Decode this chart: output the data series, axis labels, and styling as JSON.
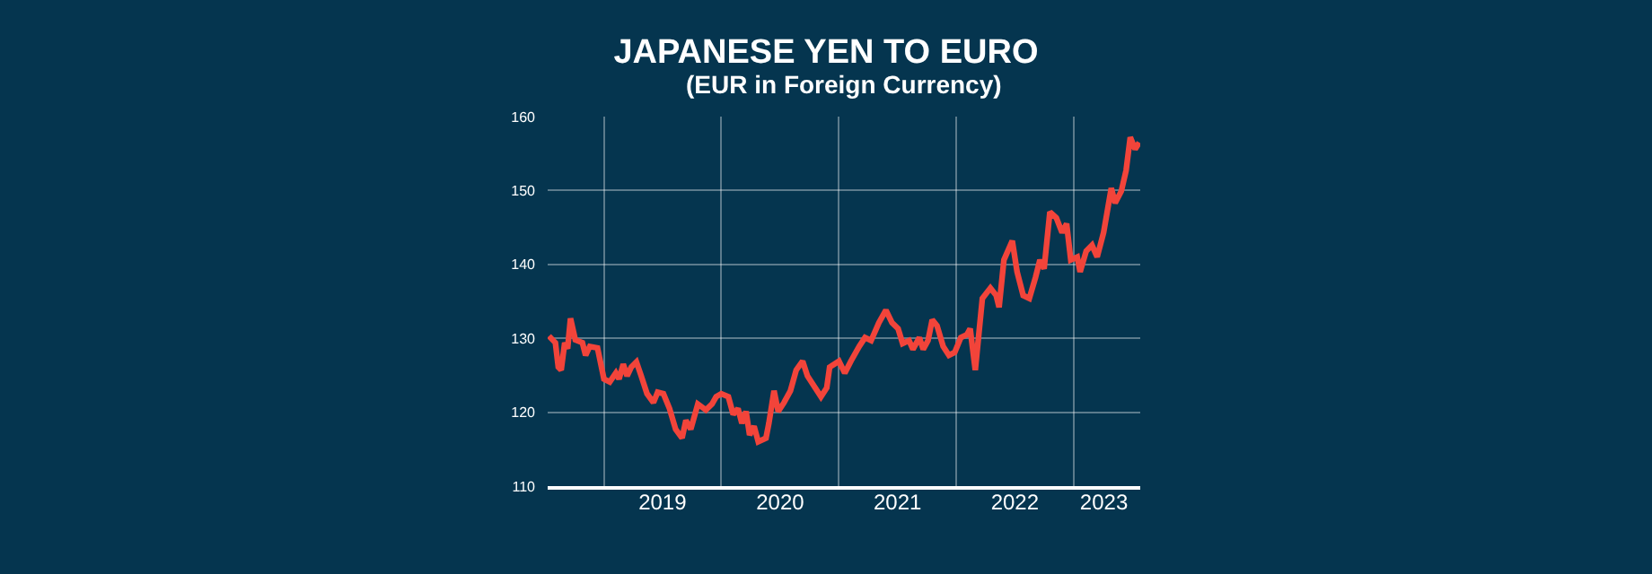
{
  "chart_data": {
    "type": "line",
    "title": "JAPANESE YEN TO EURO",
    "subtitle": "(EUR in Foreign Currency)",
    "x": [
      "2018-07-14",
      "2018-08-03",
      "2018-08-12",
      "2018-08-21",
      "2018-09-01",
      "2018-09-10",
      "2018-09-19",
      "2018-10-04",
      "2018-10-26",
      "2018-11-05",
      "2018-11-18",
      "2018-12-12",
      "2019-01-01",
      "2019-01-19",
      "2019-02-07",
      "2019-02-17",
      "2019-03-02",
      "2019-03-14",
      "2019-03-27",
      "2019-04-12",
      "2019-04-27",
      "2019-05-15",
      "2019-06-04",
      "2019-06-17",
      "2019-07-05",
      "2019-07-24",
      "2019-08-12",
      "2019-09-01",
      "2019-09-13",
      "2019-09-28",
      "2019-10-20",
      "2019-11-14",
      "2019-12-03",
      "2019-12-16",
      "2020-01-01",
      "2020-01-23",
      "2020-02-07",
      "2020-02-22",
      "2020-03-05",
      "2020-03-18",
      "2020-03-29",
      "2020-04-12",
      "2020-04-25",
      "2020-05-19",
      "2020-05-28",
      "2020-06-13",
      "2020-06-26",
      "2020-07-14",
      "2020-08-03",
      "2020-08-21",
      "2020-09-10",
      "2020-09-25",
      "2020-11-06",
      "2020-11-24",
      "2020-12-03",
      "2021-01-01",
      "2021-01-19",
      "2021-02-07",
      "2021-03-05",
      "2021-03-23",
      "2021-04-11",
      "2021-05-05",
      "2021-05-27",
      "2021-06-15",
      "2021-07-04",
      "2021-07-18",
      "2021-08-07",
      "2021-08-19",
      "2021-09-08",
      "2021-09-20",
      "2021-10-05",
      "2021-10-18",
      "2021-11-02",
      "2021-11-21",
      "2021-12-09",
      "2021-12-27",
      "2022-01-15",
      "2022-02-03",
      "2022-02-13",
      "2022-03-01",
      "2022-03-23",
      "2022-04-17",
      "2022-05-05",
      "2022-05-14",
      "2022-05-29",
      "2022-06-24",
      "2022-07-09",
      "2022-07-28",
      "2022-08-16",
      "2022-09-04",
      "2022-09-18",
      "2022-10-01",
      "2022-10-19",
      "2022-11-08",
      "2022-11-26",
      "2022-12-10",
      "2022-12-23",
      "2023-01-12",
      "2023-01-21",
      "2023-02-09",
      "2023-02-27",
      "2023-03-15",
      "2023-04-04",
      "2023-04-28",
      "2023-05-10",
      "2023-05-29",
      "2023-06-13",
      "2023-06-26",
      "2023-07-11",
      "2023-07-24"
    ],
    "series": [
      {
        "color": "#f2443a",
        "values": [
          130.3,
          129.4,
          126.1,
          125.7,
          129.4,
          128.6,
          132.7,
          129.8,
          129.4,
          127.7,
          128.9,
          128.7,
          124.5,
          124.1,
          125.3,
          124.5,
          126.5,
          124.9,
          126.1,
          126.8,
          124.9,
          122.5,
          121.3,
          122.7,
          122.5,
          120.5,
          117.7,
          116.5,
          118.9,
          117.7,
          121.1,
          120.3,
          121.1,
          122.1,
          122.5,
          122.1,
          119.7,
          120.5,
          118.5,
          120.1,
          116.9,
          118.1,
          116.0,
          116.5,
          118.5,
          122.9,
          120.1,
          121.3,
          122.9,
          125.7,
          126.9,
          124.9,
          122.1,
          123.3,
          126.1,
          126.9,
          125.3,
          126.9,
          128.9,
          130.1,
          129.7,
          132.1,
          133.8,
          132.1,
          131.3,
          129.3,
          129.7,
          128.5,
          130.1,
          128.5,
          129.7,
          132.5,
          131.7,
          128.9,
          127.7,
          128.1,
          130.1,
          130.5,
          131.3,
          125.7,
          135.4,
          136.8,
          135.8,
          134.2,
          140.6,
          143.2,
          139.0,
          135.8,
          135.4,
          138.2,
          140.6,
          139.4,
          147.1,
          146.3,
          144.3,
          145.5,
          140.6,
          141.0,
          139.0,
          141.8,
          142.6,
          141.0,
          144.3,
          150.3,
          148.3,
          149.9,
          152.7,
          157.2,
          155.6,
          156.5
        ]
      }
    ],
    "xlim": [
      "2018-07-10",
      "2023-07-27"
    ],
    "xticks": [
      {
        "value": "2019-01-01",
        "label": null
      },
      {
        "value": "2020-01-01",
        "label": null
      },
      {
        "value": "2021-01-01",
        "label": null
      },
      {
        "value": "2022-01-01",
        "label": null
      },
      {
        "value": "2023-01-01",
        "label": null
      },
      {
        "value": "2019-07-02",
        "label": "2019"
      },
      {
        "value": "2020-07-02",
        "label": "2020"
      },
      {
        "value": "2021-07-02",
        "label": "2021"
      },
      {
        "value": "2022-07-02",
        "label": "2022"
      },
      {
        "value": "2023-04-05",
        "label": "2023"
      }
    ],
    "ylim": [
      110,
      160
    ],
    "yticks": [
      110,
      120,
      130,
      140,
      150,
      160
    ],
    "grid": true,
    "marker": "none",
    "line_style": "solid"
  }
}
